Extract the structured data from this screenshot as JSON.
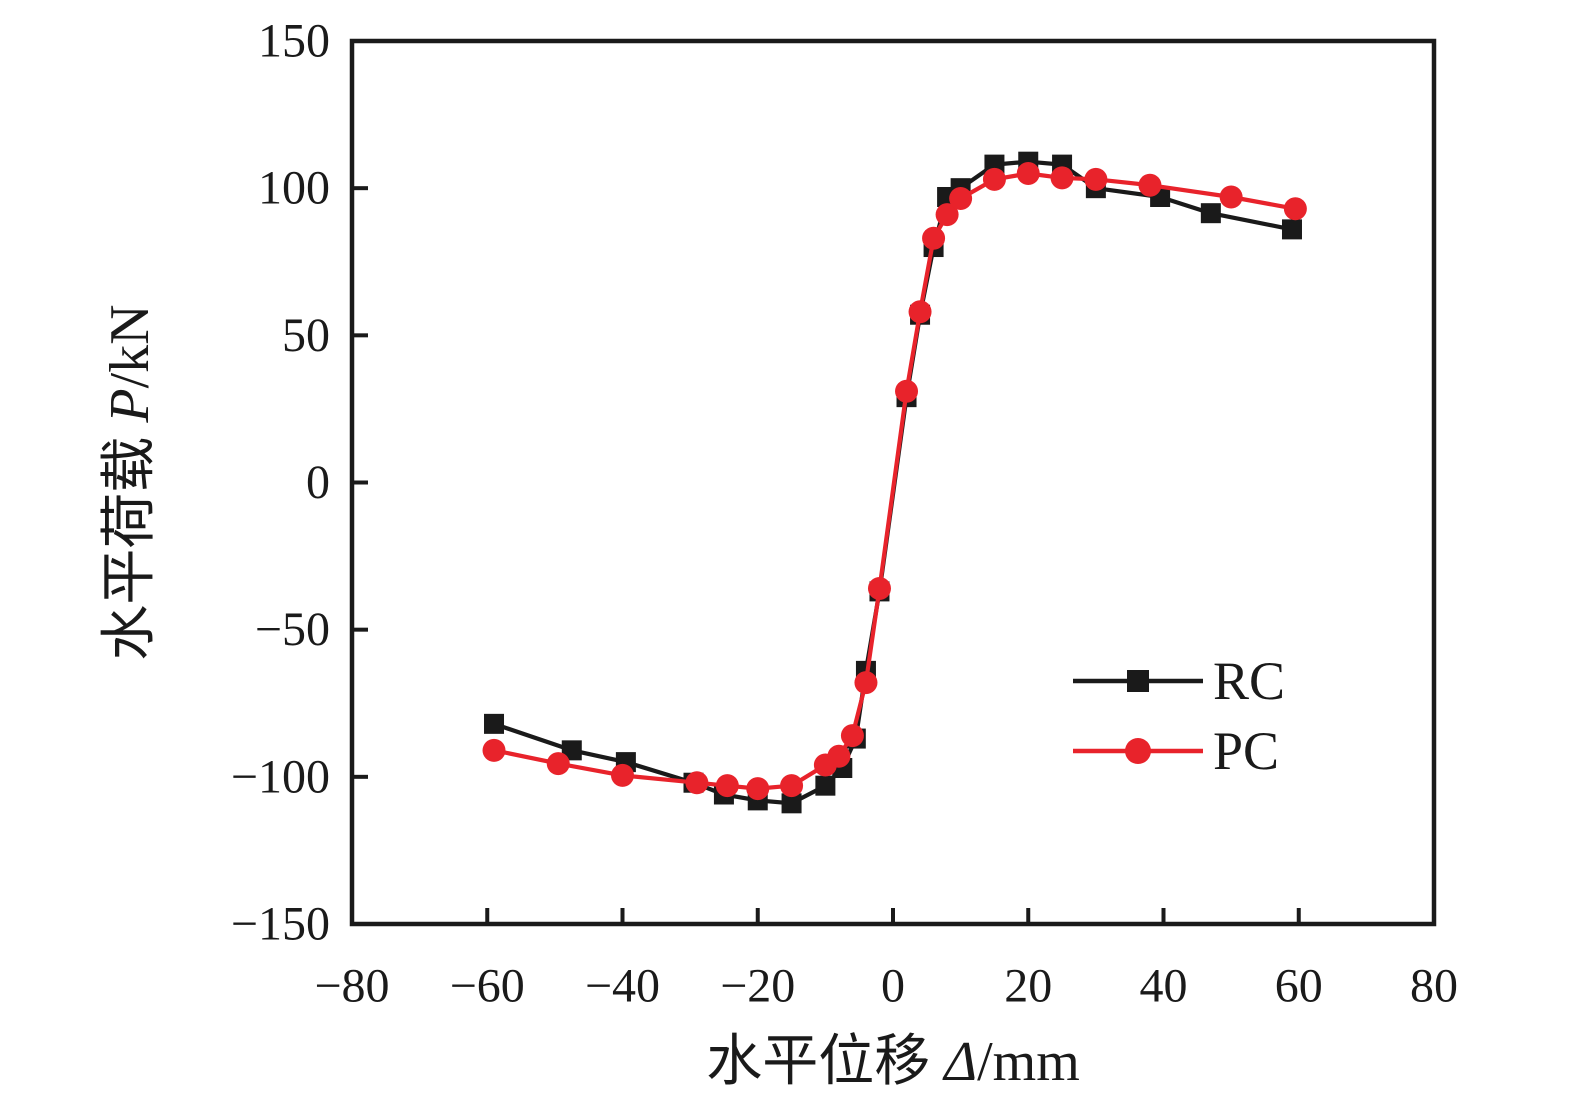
{
  "figure": {
    "background": "#ffffff",
    "ink_color": "#1a1a1a"
  },
  "chart_data": {
    "type": "line",
    "title": "",
    "xlabel": "水平位移 Δ/mm",
    "xlabel_parts": [
      {
        "text": "水平位移 ",
        "italic": false
      },
      {
        "text": "Δ",
        "italic": true
      },
      {
        "text": "/mm",
        "italic": false
      }
    ],
    "ylabel": "水平荷载 P/kN",
    "ylabel_parts": [
      {
        "text": "水平荷载 ",
        "italic": false
      },
      {
        "text": "P",
        "italic": true
      },
      {
        "text": "/kN",
        "italic": false
      }
    ],
    "xlim": [
      -80,
      80
    ],
    "ylim": [
      -150,
      150
    ],
    "xticks": [
      -80,
      -60,
      -40,
      -20,
      0,
      20,
      40,
      60,
      80
    ],
    "yticks": [
      -150,
      -100,
      -50,
      0,
      50,
      100,
      150
    ],
    "grid": false,
    "legend": {
      "position": "inside-right-middle",
      "entries": [
        "RC",
        "PC"
      ]
    },
    "series": [
      {
        "name": "RC",
        "color": "#1a1a1a",
        "marker": "square",
        "points": [
          [
            -59,
            -82
          ],
          [
            -47.5,
            -91
          ],
          [
            -39.5,
            -95
          ],
          [
            -29.5,
            -102
          ],
          [
            -25,
            -106
          ],
          [
            -20,
            -108
          ],
          [
            -15,
            -109
          ],
          [
            -10,
            -103
          ],
          [
            -7.5,
            -97
          ],
          [
            -5.5,
            -87
          ],
          [
            -4,
            -64
          ],
          [
            -2,
            -37
          ],
          [
            2,
            29
          ],
          [
            4,
            57
          ],
          [
            6,
            80
          ],
          [
            8,
            97
          ],
          [
            10,
            100
          ],
          [
            15,
            108
          ],
          [
            20,
            109
          ],
          [
            25,
            108
          ],
          [
            30,
            100
          ],
          [
            39.5,
            97
          ],
          [
            47,
            91.5
          ],
          [
            59,
            86
          ]
        ]
      },
      {
        "name": "PC",
        "color": "#e8232b",
        "marker": "circle",
        "points": [
          [
            -59,
            -91
          ],
          [
            -49.5,
            -95.5
          ],
          [
            -40,
            -99.5
          ],
          [
            -29,
            -102
          ],
          [
            -24.5,
            -103
          ],
          [
            -20,
            -104
          ],
          [
            -15,
            -103
          ],
          [
            -10,
            -96
          ],
          [
            -8,
            -93
          ],
          [
            -6,
            -86
          ],
          [
            -4,
            -68
          ],
          [
            -2,
            -36
          ],
          [
            2,
            31
          ],
          [
            4,
            58
          ],
          [
            6,
            83
          ],
          [
            8,
            91
          ],
          [
            10,
            96.5
          ],
          [
            15,
            103
          ],
          [
            20,
            105
          ],
          [
            25,
            103.5
          ],
          [
            30,
            103
          ],
          [
            38,
            101
          ],
          [
            50,
            97
          ],
          [
            59.5,
            93
          ]
        ]
      }
    ]
  }
}
